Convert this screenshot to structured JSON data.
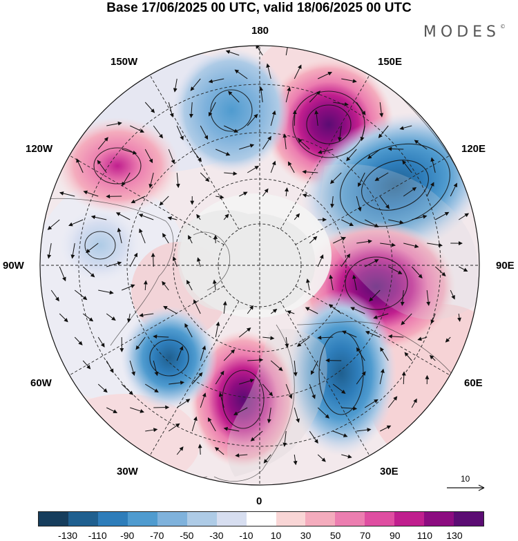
{
  "title": "Base 17/06/2025 00 UTC, valid 18/06/2025 00 UTC",
  "brand": "MODES",
  "brand_mark": "©",
  "map": {
    "projection": "north polar stereographic",
    "longitude_labels": {
      "top": "180",
      "bottom": "0",
      "left": "90W",
      "right": "90E",
      "nw1": "150W",
      "nw2": "120W",
      "ne1": "150E",
      "ne2": "120E",
      "sw1": "60W",
      "sw2": "30W",
      "se1": "60E",
      "se2": "30E"
    },
    "vector_reference_label": "10",
    "anomaly_centers": [
      {
        "name": "positive",
        "lon_sector": "160E",
        "value": 130
      },
      {
        "name": "negative",
        "lon_sector": "125E",
        "value": -130
      },
      {
        "name": "positive",
        "lon_sector": "95E",
        "value": 120
      },
      {
        "name": "negative",
        "lon_sector": "40E",
        "value": -110
      },
      {
        "name": "positive",
        "lon_sector": "10E",
        "value": 110
      },
      {
        "name": "negative",
        "lon_sector": "50W",
        "value": -90
      },
      {
        "name": "negative",
        "lon_sector": "160W",
        "value": -70
      },
      {
        "name": "positive",
        "lon_sector": "125W",
        "value": 70
      },
      {
        "name": "negative",
        "lon_sector": "95W",
        "value": -40
      }
    ]
  },
  "colorbar": {
    "colors": [
      "#163d5c",
      "#1f5f8f",
      "#2e7dba",
      "#4f9bcf",
      "#7fb2dc",
      "#aecbe6",
      "#d7def0",
      "#ffffff",
      "#f9d6d6",
      "#f4acbd",
      "#ec7eb0",
      "#df4ea1",
      "#c01f8e",
      "#8c0c80",
      "#5b0c73"
    ],
    "ticks": [
      "-130",
      "-110",
      "-90",
      "-70",
      "-50",
      "-30",
      "-10",
      "10",
      "30",
      "50",
      "70",
      "90",
      "110",
      "130"
    ]
  }
}
